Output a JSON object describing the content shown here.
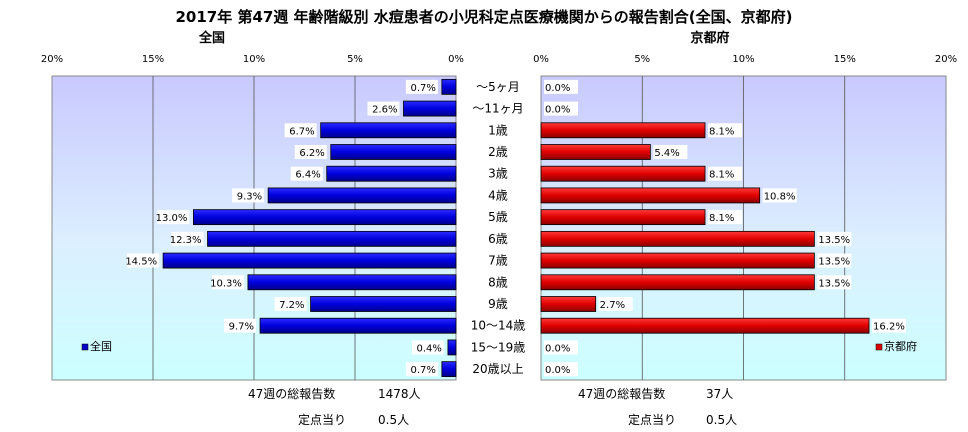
{
  "chart_data": {
    "type": "bar",
    "title": "2017年 第47週 年齢階級別 水痘患者の小児科定点医療機関からの報告割合(全国、京都府)",
    "categories": [
      "～5ヶ月",
      "～11ヶ月",
      "1歳",
      "2歳",
      "3歳",
      "4歳",
      "5歳",
      "6歳",
      "7歳",
      "8歳",
      "9歳",
      "10～14歳",
      "15～19歳",
      "20歳以上"
    ],
    "ticks": [
      "0%",
      "5%",
      "10%",
      "15%",
      "20%"
    ],
    "xlim": [
      0,
      20
    ],
    "series": [
      {
        "name": "全国",
        "panel_title": "全国",
        "color": "#0000cc",
        "values": [
          0.7,
          2.6,
          6.7,
          6.2,
          6.4,
          9.3,
          13.0,
          12.3,
          14.5,
          10.3,
          7.2,
          9.7,
          0.4,
          0.7
        ],
        "labels": [
          "0.7%",
          "2.6%",
          "6.7%",
          "6.2%",
          "6.4%",
          "9.3%",
          "13.0%",
          "12.3%",
          "14.5%",
          "10.3%",
          "7.2%",
          "9.7%",
          "0.4%",
          "0.7%"
        ],
        "legend": "全国",
        "footer_total_label": "47週の総報告数",
        "footer_total_value": "1478人",
        "footer_per_label": "定点当り",
        "footer_per_value": "0.5人"
      },
      {
        "name": "京都府",
        "panel_title": "京都府",
        "color": "#dd0000",
        "values": [
          0.0,
          0.0,
          8.1,
          5.4,
          8.1,
          10.8,
          8.1,
          13.5,
          13.5,
          13.5,
          2.7,
          16.2,
          0.0,
          0.0
        ],
        "labels": [
          "0.0%",
          "0.0%",
          "8.1%",
          "5.4%",
          "8.1%",
          "10.8%",
          "8.1%",
          "13.5%",
          "13.5%",
          "13.5%",
          "2.7%",
          "16.2%",
          "0.0%",
          "0.0%"
        ],
        "legend": "京都府",
        "footer_total_label": "47週の総報告数",
        "footer_total_value": "37人",
        "footer_per_label": "定点当り",
        "footer_per_value": "0.5人"
      }
    ],
    "grid": true
  }
}
